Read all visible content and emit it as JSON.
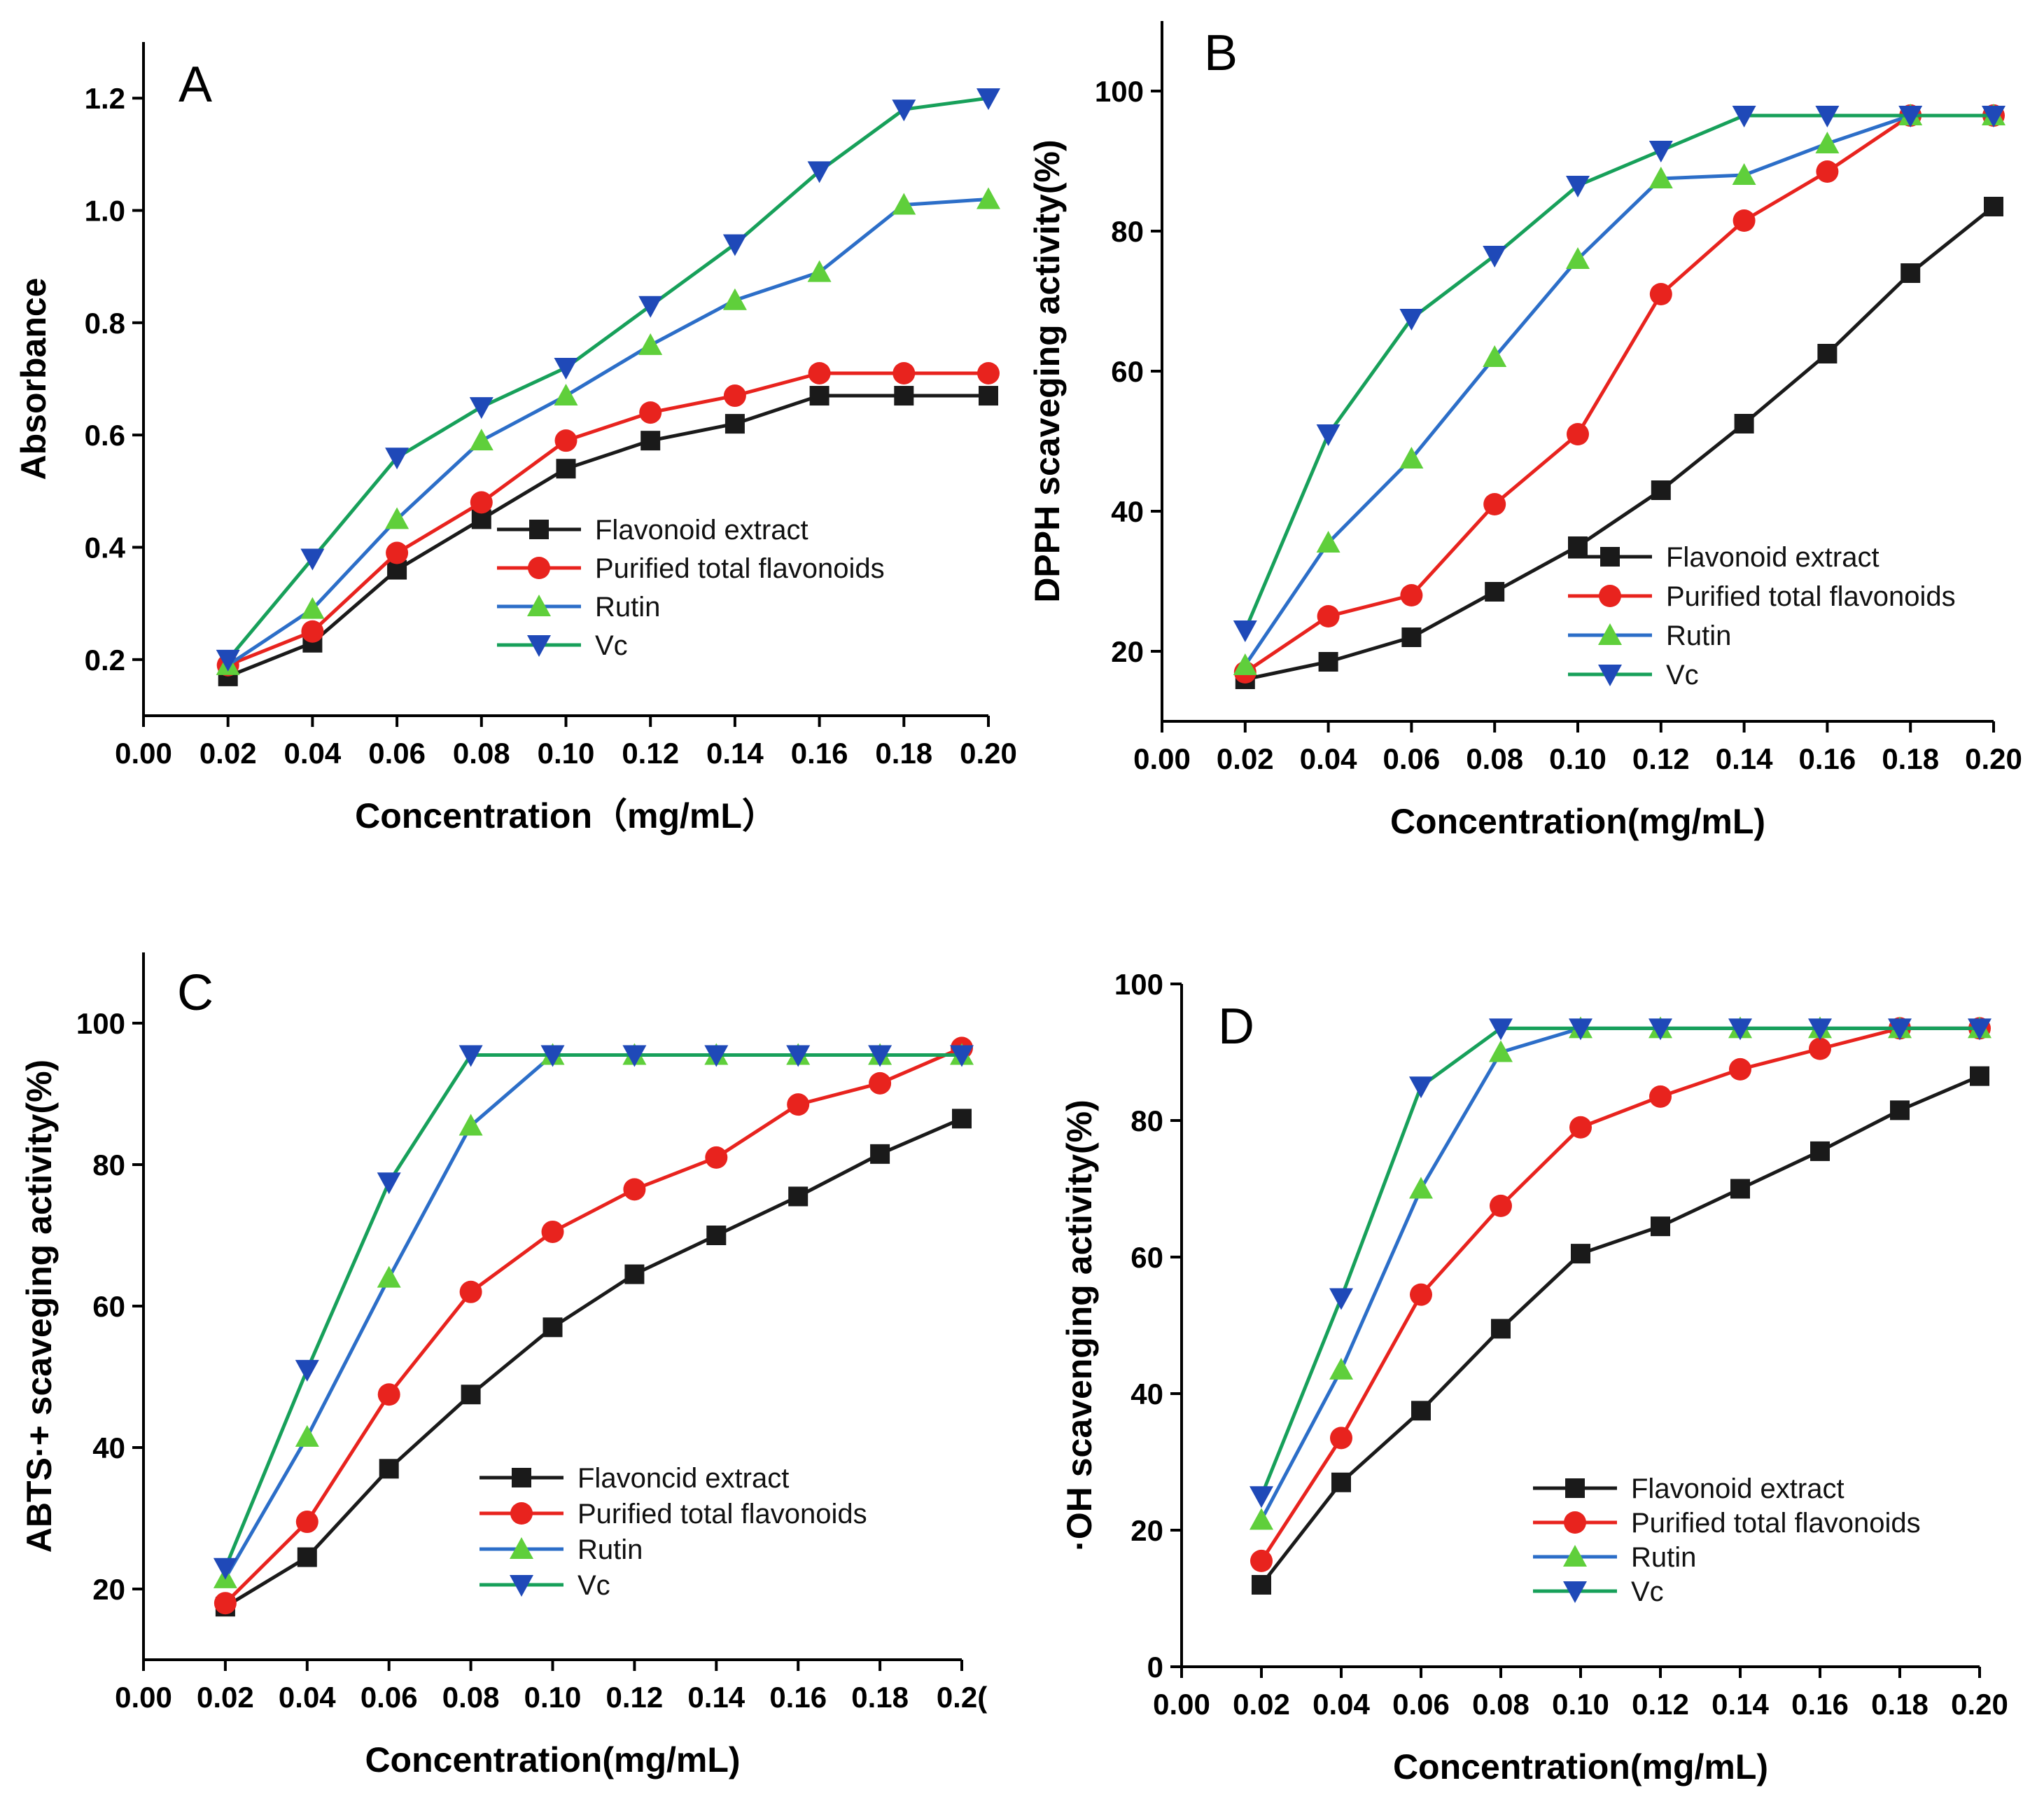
{
  "colors": {
    "flavonoid": "#1a1a1a",
    "purified": "#e8231e",
    "rutin": "#2c6ec8",
    "vc": "#17a05a",
    "green_marker": "#5fcf3b",
    "blue_marker": "#1f49b8"
  },
  "chart_data": [
    {
      "type": "line",
      "panel": "A",
      "xlabel": "Concentration（mg/mL）",
      "ylabel": "Absorbance",
      "xlim": [
        0,
        0.2
      ],
      "ylim": [
        0.1,
        1.3
      ],
      "xticks": [
        "0.00",
        "0.02",
        "0.04",
        "0.06",
        "0.08",
        "0.10",
        "0.12",
        "0.14",
        "0.16",
        "0.18",
        "0.20"
      ],
      "yticks": [
        "0.2",
        "0.4",
        "0.6",
        "0.8",
        "1.0",
        "1.2"
      ],
      "yticks_values": [
        0.2,
        0.4,
        0.6,
        0.8,
        1.0,
        1.2
      ],
      "legend": "center-right",
      "x": [
        0.02,
        0.04,
        0.06,
        0.08,
        0.1,
        0.12,
        0.14,
        0.16,
        0.18,
        0.2
      ],
      "series": [
        {
          "name": "Flavonoid extract",
          "values": [
            0.17,
            0.23,
            0.36,
            0.45,
            0.54,
            0.59,
            0.62,
            0.67,
            0.67,
            0.67
          ]
        },
        {
          "name": "Purified total flavonoids",
          "values": [
            0.19,
            0.25,
            0.39,
            0.48,
            0.59,
            0.64,
            0.67,
            0.71,
            0.71,
            0.71
          ]
        },
        {
          "name": "Rutin",
          "values": [
            0.19,
            0.29,
            0.45,
            0.59,
            0.67,
            0.76,
            0.84,
            0.89,
            1.01,
            1.02
          ]
        },
        {
          "name": "Vc",
          "values": [
            0.2,
            0.38,
            0.56,
            0.65,
            0.72,
            0.83,
            0.94,
            1.07,
            1.18,
            1.2
          ]
        }
      ]
    },
    {
      "type": "line",
      "panel": "B",
      "xlabel": "Concentration(mg/mL)",
      "ylabel": "DPPH scaveging activity(%)",
      "xlim": [
        0,
        0.2
      ],
      "ylim": [
        10,
        110
      ],
      "xticks": [
        "0.00",
        "0.02",
        "0.04",
        "0.06",
        "0.08",
        "0.10",
        "0.12",
        "0.14",
        "0.16",
        "0.18",
        "0.20"
      ],
      "yticks": [
        "20",
        "40",
        "60",
        "80",
        "100"
      ],
      "yticks_values": [
        20,
        40,
        60,
        80,
        100
      ],
      "legend": "lower-right",
      "x": [
        0.02,
        0.04,
        0.06,
        0.08,
        0.1,
        0.12,
        0.14,
        0.16,
        0.18,
        0.2
      ],
      "series": [
        {
          "name": "Flavonoid extract",
          "values": [
            16,
            18.5,
            22,
            28.5,
            35,
            43,
            52.5,
            62.5,
            74,
            83.5
          ]
        },
        {
          "name": "Purified total flavonoids",
          "values": [
            17,
            25,
            28,
            41,
            51,
            71,
            81.5,
            88.5,
            96.5,
            96.5
          ]
        },
        {
          "name": "Rutin",
          "values": [
            18,
            35.5,
            47.5,
            62,
            76,
            87.5,
            88,
            92.5,
            96.5,
            96.5
          ]
        },
        {
          "name": "Vc",
          "values": [
            23,
            51,
            67.5,
            76.5,
            86.5,
            91.5,
            96.5,
            96.5,
            96.5,
            96.5
          ]
        }
      ]
    },
    {
      "type": "line",
      "panel": "C",
      "xlabel": "Concentration(mg/mL)",
      "ylabel": "ABTS·+ scaveging activity(%)",
      "xlim": [
        0,
        0.2
      ],
      "ylim": [
        10,
        110
      ],
      "xticks": [
        "0.00",
        "0.02",
        "0.04",
        "0.06",
        "0.08",
        "0.10",
        "0.12",
        "0.14",
        "0.16",
        "0.18",
        "0.2("
      ],
      "yticks": [
        "20",
        "40",
        "60",
        "80",
        "100"
      ],
      "yticks_values": [
        20,
        40,
        60,
        80,
        100
      ],
      "legend": "lower-right",
      "x": [
        0.02,
        0.04,
        0.06,
        0.08,
        0.1,
        0.12,
        0.14,
        0.16,
        0.18,
        0.2
      ],
      "series": [
        {
          "name": "Flavoncid extract",
          "values": [
            17.5,
            24.5,
            37,
            47.5,
            57,
            64.5,
            70,
            75.5,
            81.5,
            86.5
          ]
        },
        {
          "name": "Purified total flavonoids",
          "values": [
            18,
            29.5,
            47.5,
            62,
            70.5,
            76.5,
            81,
            88.5,
            91.5,
            96.5
          ]
        },
        {
          "name": "Rutin",
          "values": [
            21.5,
            41.5,
            64,
            85.5,
            95.5,
            95.5,
            95.5,
            95.5,
            95.5,
            95.5
          ]
        },
        {
          "name": "Vc",
          "values": [
            23,
            51,
            77.5,
            95.5,
            95.5,
            95.5,
            95.5,
            95.5,
            95.5,
            95.5
          ]
        }
      ]
    },
    {
      "type": "line",
      "panel": "D",
      "xlabel": "Concentration(mg/mL)",
      "ylabel": "·OH scavenging activity(%)",
      "xlim": [
        0,
        0.2
      ],
      "ylim": [
        0,
        100
      ],
      "xticks": [
        "0.00",
        "0.02",
        "0.04",
        "0.06",
        "0.08",
        "0.10",
        "0.12",
        "0.14",
        "0.16",
        "0.18",
        "0.20"
      ],
      "yticks": [
        "0",
        "20",
        "40",
        "60",
        "80",
        "100"
      ],
      "yticks_values": [
        0,
        20,
        40,
        60,
        80,
        100
      ],
      "legend": "lower-right",
      "x": [
        0.02,
        0.04,
        0.06,
        0.08,
        0.1,
        0.12,
        0.14,
        0.16,
        0.18,
        0.2
      ],
      "series": [
        {
          "name": "Flavonoid extract",
          "values": [
            12,
            27,
            37.5,
            49.5,
            60.5,
            64.5,
            70,
            75.5,
            81.5,
            86.5
          ]
        },
        {
          "name": "Purified total flavonoids",
          "values": [
            15.5,
            33.5,
            54.5,
            67.5,
            79,
            83.5,
            87.5,
            90.5,
            93.5,
            93.5
          ]
        },
        {
          "name": "Rutin",
          "values": [
            21.5,
            43.5,
            70,
            90,
            93.5,
            93.5,
            93.5,
            93.5,
            93.5,
            93.5
          ]
        },
        {
          "name": "Vc",
          "values": [
            25,
            54,
            85,
            93.5,
            93.5,
            93.5,
            93.5,
            93.5,
            93.5,
            93.5
          ]
        }
      ]
    }
  ]
}
